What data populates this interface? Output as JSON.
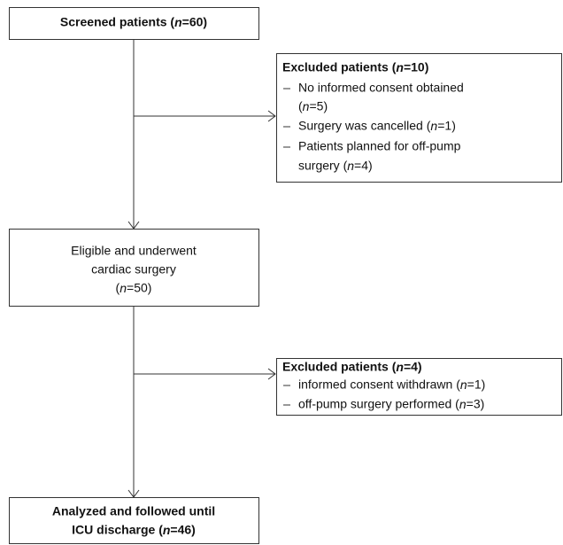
{
  "nodes": [
    {
      "lines": [
        "Screened patients (n=60)"
      ]
    },
    {
      "lines": [
        "Eligible and underwent",
        "cardiac surgery",
        "(n=50)"
      ]
    },
    {
      "lines": [
        "Analyzed and followed until",
        "ICU discharge  (n=46)"
      ]
    }
  ],
  "exclusions": [
    {
      "title": "Excluded patients (n=10)",
      "items": [
        [
          "No informed consent obtained",
          "(n=5)"
        ],
        [
          "Surgery was cancelled (n=1)"
        ],
        [
          "Patients planned for off-pump",
          "surgery (n=4)"
        ]
      ]
    },
    {
      "title": "Excluded patients (n=4)",
      "items": [
        [
          "informed consent withdrawn (n=1)"
        ],
        [
          "off-pump surgery performed (n=3)"
        ]
      ]
    }
  ]
}
